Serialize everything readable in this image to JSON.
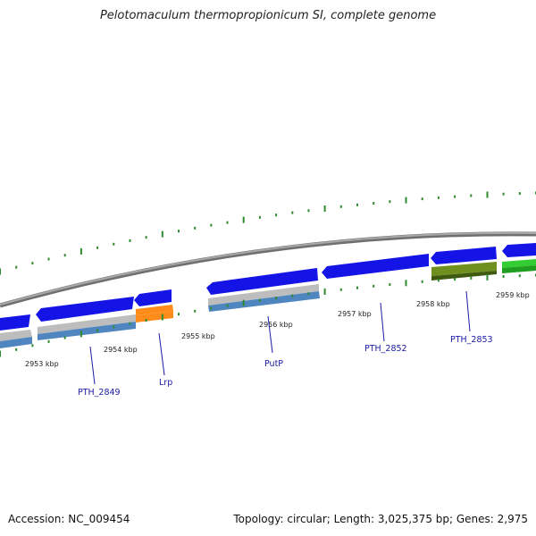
{
  "title": "Pelotomaculum thermopropionicum SI, complete genome",
  "footer": {
    "accession": "Accession: NC_009454",
    "summary": "Topology: circular; Length: 3,025,375 bp; Genes: 2,975"
  },
  "colors": {
    "backbone": "#8c8c8c",
    "tick": "#2e8b2e",
    "gene_forward": "#1414e6",
    "gene_label": "#1a1aa6",
    "track_steelblue": "#4f86c0",
    "track_gray": "#bdbdbd",
    "track_orange": "#ff8c1a",
    "track_olive": "#6f8f1f",
    "track_green": "#33cc33"
  },
  "axis": {
    "unit": "kbp",
    "tick_labels": [
      "2953 kbp",
      "2954 kbp",
      "2955 kbp",
      "2956 kbp",
      "2957 kbp",
      "2958 kbp",
      "2959 kbp"
    ]
  },
  "genes": [
    {
      "label": "PTH_2849"
    },
    {
      "label": "Lrp"
    },
    {
      "label": "PutP"
    },
    {
      "label": "PTH_2852"
    },
    {
      "label": "PTH_2853"
    }
  ]
}
